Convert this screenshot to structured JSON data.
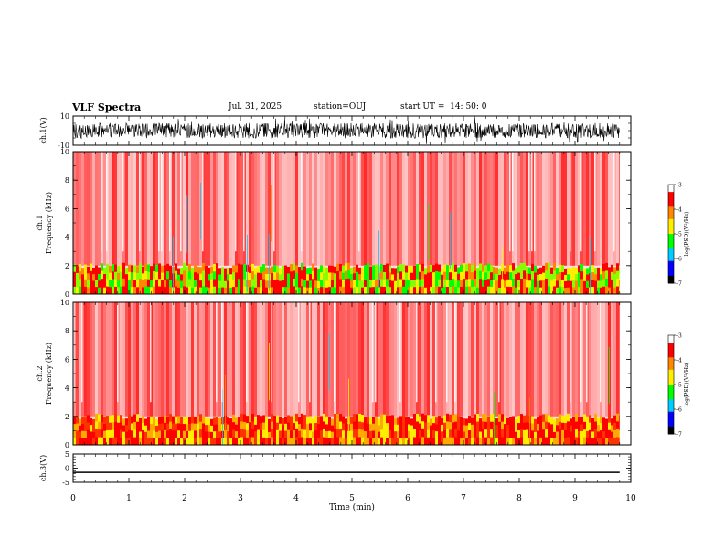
{
  "header": {
    "title": "VLF Spectra",
    "date": "Jul. 31, 2025",
    "station": "station=OUJ",
    "start": "start UT =  14: 50: 0"
  },
  "colors": {
    "background": "#ffffff",
    "axis": "#000000",
    "trace": "#000000",
    "colormap": [
      "#ffffff",
      "#ff0000",
      "#ff8800",
      "#ffee00",
      "#00ff00",
      "#00ccff",
      "#0000ff",
      "#000000"
    ]
  },
  "chart_data": [
    {
      "id": "ch1-waveform",
      "type": "line",
      "ylabel": "ch.1(V)",
      "ylim": [
        -10,
        10
      ],
      "yticks": [
        "10",
        "-10"
      ],
      "xlim": [
        0,
        10
      ],
      "description_series": "dense noisy waveform spanning roughly -10 to 10 V across the full 10 minutes"
    },
    {
      "id": "ch1-spectrogram",
      "type": "heatmap",
      "ylabel": "ch.1\nFrequency (kHz)",
      "ylabel_lines": [
        "ch.1",
        "Frequency (kHz)"
      ],
      "ylim": [
        0,
        10
      ],
      "yticks": [
        "0",
        "2",
        "4",
        "6",
        "8",
        "10"
      ],
      "xlim": [
        0,
        10
      ],
      "colorbar": {
        "label": "log(PSD)(V²/Hz)",
        "range": [
          -7,
          -3
        ],
        "ticks": [
          "-3",
          "-4",
          "-5",
          "-6",
          "-7"
        ]
      }
    },
    {
      "id": "ch2-spectrogram",
      "type": "heatmap",
      "ylabel_lines": [
        "ch.2",
        "Frequency (kHz)"
      ],
      "ylim": [
        0,
        10
      ],
      "yticks": [
        "0",
        "2",
        "4",
        "6",
        "8",
        "10"
      ],
      "xlim": [
        0,
        10
      ],
      "colorbar": {
        "label": "log(PSD)(V²/Hz)",
        "range": [
          -7,
          -3
        ],
        "ticks": [
          "-3",
          "-4",
          "-5",
          "-6",
          "-7"
        ]
      }
    },
    {
      "id": "ch3-waveform",
      "type": "line",
      "ylabel": "ch.3(V)",
      "ylim": [
        -5,
        5
      ],
      "yticks": [
        "5",
        "0",
        "-5"
      ],
      "xlim": [
        0,
        10
      ],
      "series": [
        {
          "name": "ch.3",
          "x": [
            0,
            9.8
          ],
          "y": [
            -1.5,
            -1.5
          ]
        }
      ]
    }
  ],
  "xaxis": {
    "label": "Time (min)",
    "ticks": [
      "0",
      "1",
      "2",
      "3",
      "4",
      "5",
      "6",
      "7",
      "8",
      "9",
      "10"
    ],
    "data_end": 9.8
  }
}
